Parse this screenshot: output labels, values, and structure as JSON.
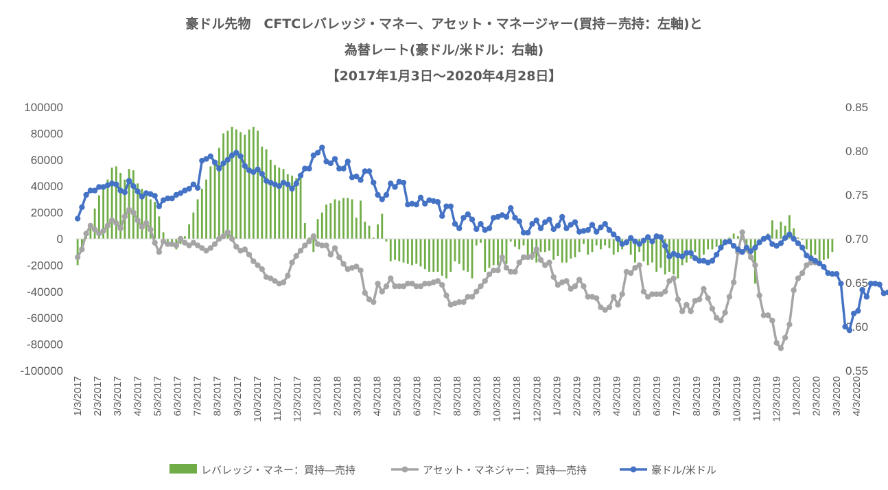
{
  "chart_data": {
    "type": "bar+line",
    "title_lines": [
      "豪ドル先物　CFTCレバレッジ・マネー、アセット・マネージャー(買持－売持：左軸)と",
      "為替レート(豪ドル/米ドル：右軸)",
      "【2017年1月3日～2020年4月28日】"
    ],
    "left_axis": {
      "ylim": [
        -100000,
        100000
      ],
      "ticks": [
        "100000",
        "80000",
        "60000",
        "40000",
        "20000",
        "0",
        "-20000",
        "-40000",
        "-60000",
        "-80000",
        "-100000"
      ]
    },
    "right_axis": {
      "ylim": [
        0.55,
        0.85
      ],
      "ticks": [
        "0.85",
        "0.80",
        "0.75",
        "0.70",
        "0.65",
        "0.60",
        "0.55"
      ]
    },
    "x_tick_labels": [
      "1/3/2017",
      "2/3/2017",
      "3/3/2017",
      "4/3/2017",
      "5/3/2017",
      "6/3/2017",
      "7/3/2017",
      "8/3/2017",
      "9/3/2017",
      "10/3/2017",
      "11/3/2017",
      "12/3/2017",
      "1/3/2018",
      "2/3/2018",
      "3/3/2018",
      "4/3/2018",
      "5/3/2018",
      "6/3/2018",
      "7/3/2018",
      "8/3/2018",
      "9/3/2018",
      "10/3/2018",
      "11/3/2018",
      "12/3/2018",
      "1/3/2019",
      "2/3/2019",
      "3/3/2019",
      "4/3/2019",
      "5/3/2019",
      "6/3/2019",
      "7/3/2019",
      "8/3/2019",
      "9/3/2019",
      "10/3/2019",
      "11/3/2019",
      "12/3/2019",
      "1/3/2020",
      "2/3/2020",
      "3/3/2020",
      "4/3/2020"
    ],
    "series": [
      {
        "name": "レバレッジ・マネー：買持―売持",
        "kind": "bar",
        "axis": "left",
        "color": "#70AD47",
        "values": [
          -20000,
          -8000,
          5000,
          12000,
          23000,
          33000,
          38000,
          45000,
          54000,
          55000,
          50000,
          45000,
          53000,
          52000,
          42000,
          38000,
          35000,
          30000,
          28000,
          17000,
          5000,
          -2000,
          -5000,
          -8000,
          -4000,
          2000,
          11000,
          20000,
          30000,
          38000,
          45000,
          55000,
          60000,
          69000,
          80000,
          82000,
          85000,
          83000,
          81000,
          79000,
          83000,
          85000,
          82000,
          70000,
          68000,
          60000,
          56000,
          54000,
          53000,
          49000,
          48000,
          46000,
          46000,
          12000,
          1000,
          -10000,
          15000,
          20000,
          26000,
          27000,
          30000,
          29000,
          31000,
          31000,
          30000,
          16000,
          29000,
          13000,
          10000,
          1000,
          11000,
          19000,
          -2000,
          -17000,
          -16000,
          -17000,
          -18000,
          -19000,
          -20000,
          -19000,
          -21000,
          -23000,
          -25000,
          -25000,
          -25000,
          -28000,
          -30000,
          -25000,
          -17000,
          -19000,
          -24000,
          -25000,
          -30000,
          -5000,
          -3000,
          -25000,
          -22000,
          -20000,
          -20000,
          -16000,
          -19000,
          -2000,
          -6000,
          -8000,
          -5000,
          -16000,
          -16000,
          -18000,
          -10000,
          -10000,
          -9000,
          -16000,
          -13000,
          -18000,
          -18000,
          -15000,
          -14000,
          -10000,
          -4000,
          -12000,
          -10000,
          -5000,
          -8000,
          -5000,
          -7000,
          -12000,
          -10000,
          -8000,
          -5000,
          -12000,
          -18000,
          -10000,
          -17000,
          -20000,
          -18000,
          -25000,
          -22000,
          -27000,
          -25000,
          -27000,
          -30000,
          -20000,
          -18000,
          -15000,
          -10000,
          -15000,
          -12000,
          -8000,
          -8000,
          -6000,
          -8000,
          -4000,
          1000,
          4000,
          2000,
          -1000,
          -10000,
          -12000,
          -34000,
          -4000,
          -2000,
          4000,
          14000,
          7000,
          13000,
          10000,
          18000,
          8000,
          1000,
          -1000,
          -8000,
          -13000,
          -12000,
          -18000,
          -16000,
          -15000,
          -10000
        ]
      },
      {
        "name": "アセット・マネジャー：買持―売持",
        "kind": "line",
        "axis": "left",
        "color": "#A5A5A5",
        "values": [
          -14000,
          -8000,
          4000,
          10000,
          7000,
          4000,
          6000,
          10000,
          14000,
          12000,
          8000,
          17000,
          22000,
          20000,
          14000,
          9000,
          12000,
          7000,
          -3000,
          -10000,
          -2000,
          -4000,
          -4000,
          -5000,
          0,
          -3000,
          -5000,
          -3000,
          -5000,
          -7000,
          -9000,
          -7000,
          -4000,
          0,
          2000,
          5000,
          0,
          -6000,
          -9000,
          -8000,
          -12000,
          -17000,
          -20000,
          -23000,
          -29000,
          -30000,
          -32000,
          -34000,
          -33000,
          -28000,
          -18000,
          -13000,
          -9000,
          -5000,
          -2000,
          2000,
          -4000,
          -5000,
          -5000,
          -12000,
          -7000,
          -14000,
          -19000,
          -23000,
          -22000,
          -21000,
          -24000,
          -41000,
          -46000,
          -48000,
          -34000,
          -40000,
          -36000,
          -30000,
          -36000,
          -36000,
          -36000,
          -34000,
          -34000,
          -36000,
          -36000,
          -34000,
          -34000,
          -33000,
          -32000,
          -35000,
          -43000,
          -50000,
          -49000,
          -48000,
          -48000,
          -44000,
          -44000,
          -40000,
          -36000,
          -32000,
          -27000,
          -24000,
          -24000,
          -14000,
          -22000,
          -25000,
          -25000,
          -18000,
          -14000,
          -14000,
          -13000,
          -8000,
          -16000,
          -20000,
          -18000,
          -29000,
          -35000,
          -33000,
          -32000,
          -38000,
          -36000,
          -31000,
          -36000,
          -44000,
          -44000,
          -45000,
          -52000,
          -54000,
          -52000,
          -44000,
          -50000,
          -42000,
          -25000,
          -26000,
          -22000,
          -20000,
          -40000,
          -44000,
          -42000,
          -42000,
          -42000,
          -40000,
          -32000,
          -30000,
          -46000,
          -55000,
          -50000,
          -55000,
          -47000,
          -46000,
          -38000,
          -45000,
          -53000,
          -60000,
          -62000,
          -56000,
          -44000,
          -33000,
          -10000,
          5000,
          -8000,
          -14000,
          -20000,
          -43000,
          -58000,
          -58000,
          -62000,
          -79000,
          -83000,
          -75000,
          -65000,
          -39000,
          -30000,
          -26000,
          -20000,
          -18000,
          -18000
        ]
      },
      {
        "name": "豪ドル/米ドル",
        "kind": "line",
        "axis": "right",
        "color": "#4472C4",
        "values": [
          0.723,
          0.736,
          0.75,
          0.755,
          0.755,
          0.759,
          0.759,
          0.761,
          0.763,
          0.762,
          0.755,
          0.753,
          0.766,
          0.76,
          0.754,
          0.748,
          0.752,
          0.751,
          0.749,
          0.737,
          0.744,
          0.746,
          0.746,
          0.75,
          0.752,
          0.755,
          0.757,
          0.762,
          0.758,
          0.789,
          0.791,
          0.794,
          0.787,
          0.78,
          0.786,
          0.79,
          0.795,
          0.798,
          0.794,
          0.783,
          0.778,
          0.776,
          0.779,
          0.774,
          0.766,
          0.764,
          0.762,
          0.76,
          0.764,
          0.762,
          0.757,
          0.763,
          0.772,
          0.78,
          0.78,
          0.795,
          0.798,
          0.804,
          0.788,
          0.786,
          0.791,
          0.78,
          0.78,
          0.788,
          0.77,
          0.771,
          0.767,
          0.777,
          0.777,
          0.764,
          0.75,
          0.745,
          0.75,
          0.763,
          0.759,
          0.765,
          0.764,
          0.739,
          0.74,
          0.739,
          0.747,
          0.74,
          0.744,
          0.743,
          0.742,
          0.726,
          0.737,
          0.737,
          0.717,
          0.712,
          0.724,
          0.728,
          0.722,
          0.711,
          0.717,
          0.71,
          0.712,
          0.724,
          0.725,
          0.727,
          0.725,
          0.735,
          0.724,
          0.72,
          0.707,
          0.707,
          0.717,
          0.721,
          0.712,
          0.719,
          0.722,
          0.711,
          0.715,
          0.725,
          0.712,
          0.716,
          0.719,
          0.708,
          0.709,
          0.71,
          0.716,
          0.708,
          0.713,
          0.717,
          0.71,
          0.705,
          0.7,
          0.694,
          0.696,
          0.701,
          0.697,
          0.694,
          0.698,
          0.702,
          0.697,
          0.703,
          0.702,
          0.692,
          0.68,
          0.683,
          0.681,
          0.68,
          0.684,
          0.684,
          0.678,
          0.675,
          0.675,
          0.673,
          0.675,
          0.682,
          0.69,
          0.696,
          0.697,
          0.692,
          0.688,
          0.685,
          0.69,
          0.686,
          0.69,
          0.696,
          0.7,
          0.702,
          0.694,
          0.692,
          0.695,
          0.701,
          0.705,
          0.7,
          0.695,
          0.69,
          0.681,
          0.678,
          0.675,
          0.672,
          0.668,
          0.661,
          0.66,
          0.66,
          0.649,
          0.6,
          0.596,
          0.615,
          0.618,
          0.642,
          0.634,
          0.649,
          0.649,
          0.648,
          0.638,
          0.639
        ]
      }
    ],
    "legend": {
      "placement": "bottom",
      "items": [
        {
          "label": "レバレッジ・マネー：買持―売持",
          "marker": "bar",
          "color": "#70AD47"
        },
        {
          "label": "アセット・マネジャー：買持―売持",
          "marker": "line-dot",
          "color": "#A5A5A5"
        },
        {
          "label": "豪ドル/米ドル",
          "marker": "line-dot",
          "color": "#4472C4"
        }
      ]
    },
    "grid": false
  }
}
